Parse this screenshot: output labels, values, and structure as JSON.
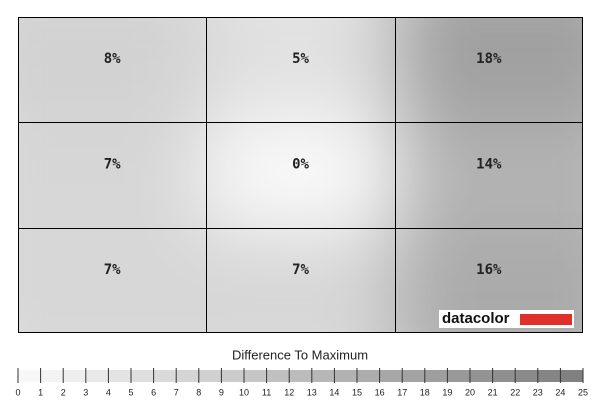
{
  "chart_data": {
    "type": "heatmap",
    "values": [
      [
        8,
        5,
        18
      ],
      [
        7,
        0,
        14
      ],
      [
        7,
        7,
        16
      ]
    ],
    "value_labels": [
      [
        "8%",
        "5%",
        "18%"
      ],
      [
        "7%",
        "0%",
        "14%"
      ],
      [
        "7%",
        "7%",
        "16%"
      ]
    ],
    "watermark": "datacolor",
    "colorbar_title": "Difference To Maximum",
    "colorbar_lim": [
      0,
      25
    ],
    "colorbar_ticks": [
      0,
      1,
      2,
      3,
      4,
      5,
      6,
      7,
      8,
      9,
      10,
      11,
      12,
      13,
      14,
      15,
      16,
      17,
      18,
      19,
      20,
      21,
      22,
      23,
      24,
      25
    ]
  }
}
